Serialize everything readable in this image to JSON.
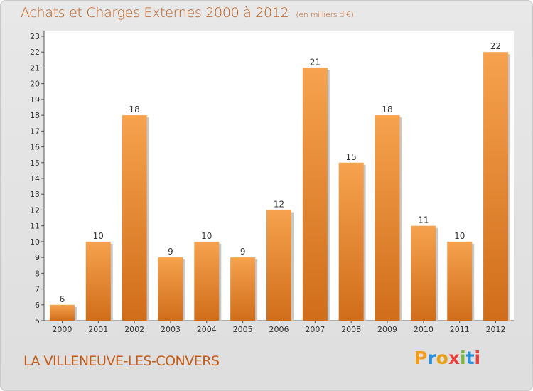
{
  "header": {
    "title": "Achats et Charges Externes 2000 à 2012",
    "subtitle": "(en milliers d'€)"
  },
  "footer": {
    "commune": "LA VILLENEUVE-LES-CONVERS",
    "logo": "Proxiti",
    "logo_colors": [
      "#f39c1a",
      "#2a8fd8",
      "#e8a21a",
      "#e84040",
      "#7ab83a",
      "#2a8fd8",
      "#e84040"
    ]
  },
  "colors": {
    "bar_light": "#f6a24e",
    "bar_dark": "#d06d1a",
    "accent": "#c35b16"
  },
  "chart_data": {
    "type": "bar",
    "categories": [
      "2000",
      "2001",
      "2002",
      "2003",
      "2004",
      "2005",
      "2006",
      "2007",
      "2008",
      "2009",
      "2010",
      "2011",
      "2012"
    ],
    "values": [
      6,
      10,
      18,
      9,
      10,
      9,
      12,
      21,
      15,
      18,
      11,
      10,
      22
    ],
    "title": "Achats et Charges Externes 2000 à 2012",
    "ylim": [
      5,
      23
    ],
    "yticks": [
      5,
      6,
      7,
      8,
      9,
      10,
      11,
      12,
      13,
      14,
      15,
      16,
      17,
      18,
      19,
      20,
      21,
      22,
      23
    ],
    "grid": false
  }
}
